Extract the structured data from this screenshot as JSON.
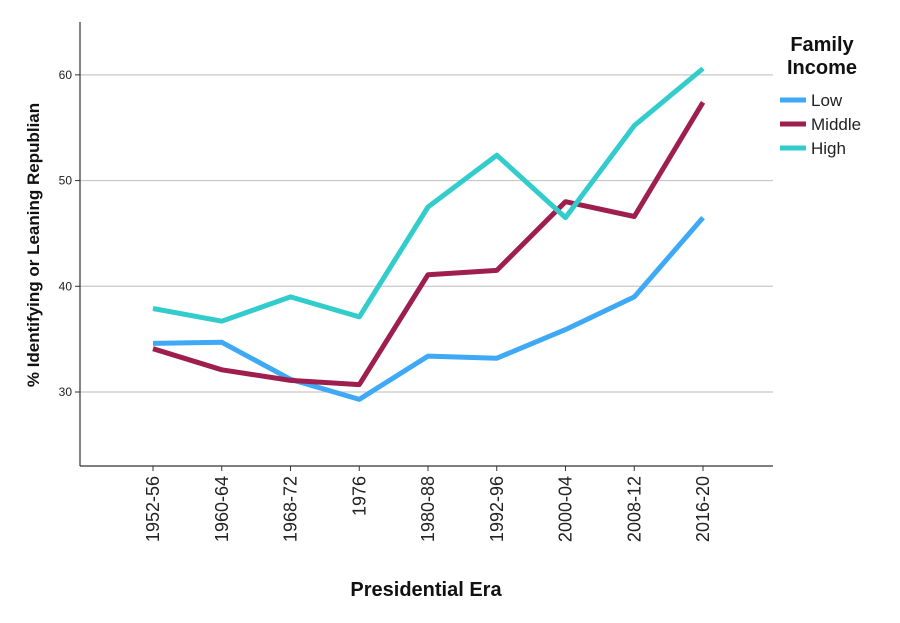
{
  "chart_data": {
    "type": "line",
    "xlabel": "Presidential Era",
    "ylabel": "% Identifying or Leaning Republian",
    "categories": [
      "1952-56",
      "1960-64",
      "1968-72",
      "1976",
      "1980-88",
      "1992-96",
      "2000-04",
      "2008-12",
      "2016-20"
    ],
    "yticks": [
      30,
      40,
      50,
      60
    ],
    "ylim": [
      23,
      65
    ],
    "grid": "horizontal",
    "legend": {
      "title_lines": [
        "Family",
        "Income"
      ],
      "position": "right"
    },
    "series": [
      {
        "name": "Low",
        "color": "#3fa9f5",
        "values": [
          34.6,
          34.7,
          31.2,
          29.3,
          33.4,
          33.2,
          35.9,
          39.0,
          46.5
        ]
      },
      {
        "name": "Middle",
        "color": "#9e1f4e",
        "values": [
          34.1,
          32.1,
          31.1,
          30.7,
          41.1,
          41.5,
          48.0,
          46.6,
          57.4
        ]
      },
      {
        "name": "High",
        "color": "#33cccc",
        "values": [
          37.9,
          36.7,
          39.0,
          37.1,
          47.5,
          52.4,
          46.5,
          55.2,
          60.6
        ]
      }
    ]
  }
}
